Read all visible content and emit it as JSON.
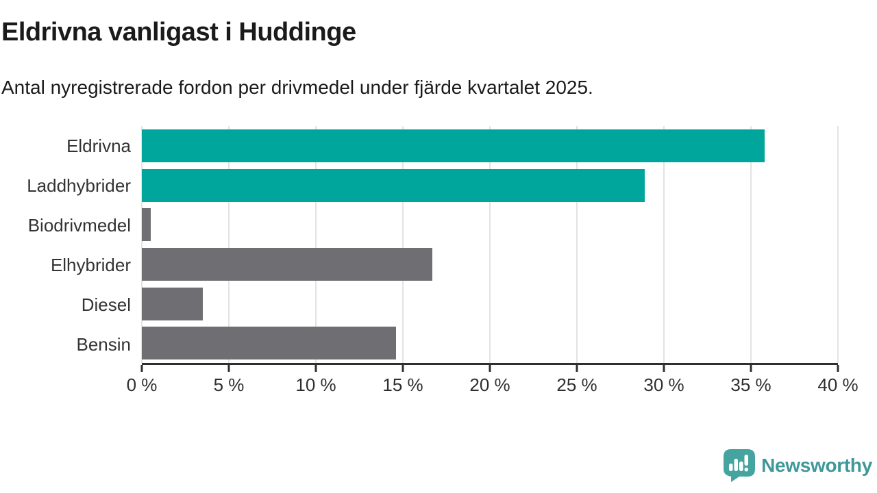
{
  "header": {
    "title": "Eldrivna vanligast i Huddinge",
    "subtitle": "Antal nyregistrerade fordon per drivmedel under fjärde kvartalet 2025."
  },
  "chart_data": {
    "type": "bar",
    "orientation": "horizontal",
    "title": "Eldrivna vanligast i Huddinge",
    "subtitle": "Antal nyregistrerade fordon per drivmedel under fjärde kvartalet 2025.",
    "categories": [
      "Eldrivna",
      "Laddhybrider",
      "Biodrivmedel",
      "Elhybrider",
      "Diesel",
      "Bensin"
    ],
    "values": [
      35.8,
      28.9,
      0.5,
      16.7,
      3.5,
      14.6
    ],
    "unit": "%",
    "bar_colors": [
      "#00a69c",
      "#00a69c",
      "#6e6e73",
      "#6e6e73",
      "#6e6e73",
      "#6e6e73"
    ],
    "highlight_color": "#00a69c",
    "default_color": "#6e6e73",
    "xlim": [
      0,
      40
    ],
    "x_ticks": [
      0,
      5,
      10,
      15,
      20,
      25,
      30,
      35,
      40
    ],
    "x_tick_labels": [
      "0 %",
      "5 %",
      "10 %",
      "15 %",
      "20 %",
      "25 %",
      "30 %",
      "35 %",
      "40 %"
    ],
    "grid": true,
    "gridline_color": "#e3e3e3",
    "axis_color": "#2f2f2f",
    "legend": "none"
  },
  "footer": {
    "brand_name": "Newsworthy",
    "brand_text_color": "#3e9899",
    "brand_icon": "speech-bubble-bar-chart-icon",
    "brand_icon_color": "#45a3a0"
  }
}
